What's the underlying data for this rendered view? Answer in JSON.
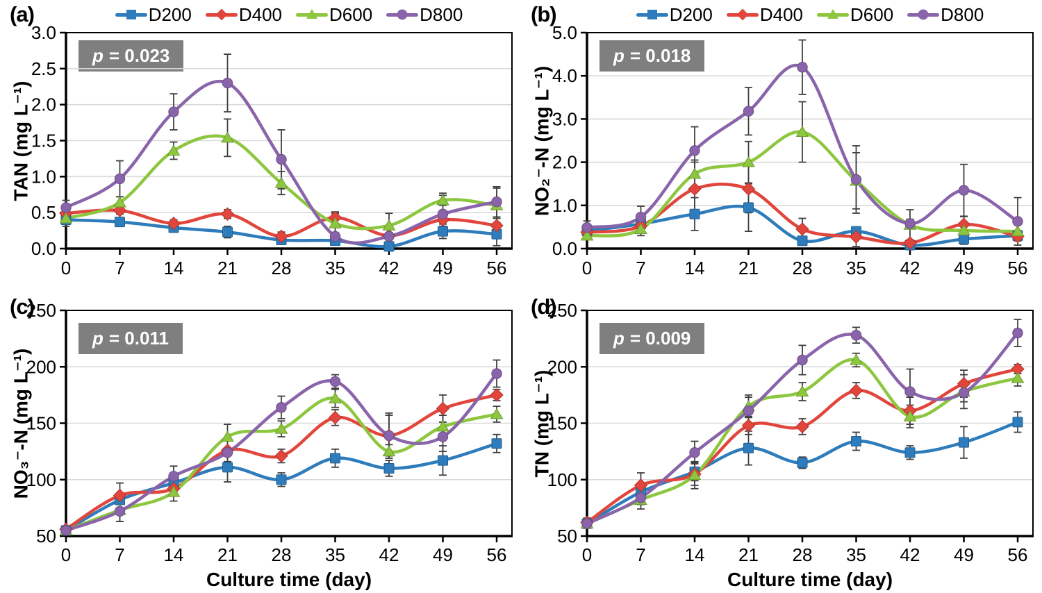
{
  "figure": {
    "background": "#ffffff",
    "grid_color": "#d9d9d9",
    "axis_color": "#000000",
    "error_bar_color": "#404040",
    "p_box_bg": "#7f7f7f",
    "p_box_text_color": "#ffffff"
  },
  "chart_data": [
    {
      "type": "line",
      "panel_label": "(a)",
      "p_symbol": "p",
      "p_rest": "= 0.023",
      "ylabel": "TAN (mg L⁻¹)",
      "xlabel": "",
      "legend_visible": true,
      "legend_position": "top",
      "grid": "horizontal",
      "x": [
        0,
        7,
        14,
        21,
        28,
        35,
        42,
        49,
        56
      ],
      "xtick_labels": [
        "0",
        "7",
        "14",
        "21",
        "28",
        "35",
        "42",
        "49",
        "56"
      ],
      "ylim": [
        0,
        3
      ],
      "ytick_values": [
        0,
        0.5,
        1.0,
        1.5,
        2.0,
        2.5,
        3.0
      ],
      "ytick_labels": [
        "0.0",
        "0.5",
        "1.0",
        "1.5",
        "2.0",
        "2.5",
        "3.0"
      ],
      "series": [
        {
          "name": "D200",
          "color": "#2e7cbb",
          "marker": "square",
          "values": [
            0.4,
            0.37,
            0.29,
            0.23,
            0.12,
            0.11,
            0.03,
            0.24,
            0.2
          ],
          "errors": [
            0.09,
            0.06,
            0.05,
            0.08,
            0.05,
            0.05,
            0.03,
            0.1,
            0.16
          ]
        },
        {
          "name": "D400",
          "color": "#e2453c",
          "marker": "diamond",
          "values": [
            0.49,
            0.53,
            0.35,
            0.48,
            0.17,
            0.43,
            0.18,
            0.4,
            0.32
          ],
          "errors": [
            0.08,
            0.05,
            0.05,
            0.06,
            0.06,
            0.08,
            0.04,
            0.09,
            0.1
          ]
        },
        {
          "name": "D600",
          "color": "#8dc63f",
          "marker": "triangle",
          "values": [
            0.42,
            0.64,
            1.36,
            1.54,
            0.91,
            0.35,
            0.32,
            0.67,
            0.6
          ],
          "errors": [
            0.05,
            0.08,
            0.12,
            0.26,
            0.16,
            0.14,
            0.17,
            0.07,
            0.24
          ]
        },
        {
          "name": "D800",
          "color": "#8a64aa",
          "marker": "circle",
          "values": [
            0.57,
            0.97,
            1.9,
            2.3,
            1.24,
            0.17,
            0.17,
            0.48,
            0.65
          ],
          "errors": [
            0.1,
            0.25,
            0.25,
            0.4,
            0.41,
            0.05,
            0.05,
            0.29,
            0.21
          ]
        }
      ]
    },
    {
      "type": "line",
      "panel_label": "(b)",
      "p_symbol": "p",
      "p_rest": "= 0.018",
      "ylabel": "NO₂⁻-N (mg L⁻¹)",
      "xlabel": "",
      "legend_visible": true,
      "legend_position": "top",
      "grid": "horizontal",
      "x": [
        0,
        7,
        14,
        21,
        28,
        35,
        42,
        49,
        56
      ],
      "xtick_labels": [
        "0",
        "7",
        "14",
        "21",
        "28",
        "35",
        "42",
        "49",
        "56"
      ],
      "ylim": [
        0,
        5
      ],
      "ytick_values": [
        0,
        1.0,
        2.0,
        3.0,
        4.0,
        5.0
      ],
      "ytick_labels": [
        "0.0",
        "1.0",
        "2.0",
        "3.0",
        "4.0",
        "5.0"
      ],
      "series": [
        {
          "name": "D200",
          "color": "#2e7cbb",
          "marker": "square",
          "values": [
            0.41,
            0.57,
            0.8,
            0.95,
            0.18,
            0.4,
            0.08,
            0.22,
            0.3
          ],
          "errors": [
            0.1,
            0.12,
            0.38,
            0.55,
            0.08,
            0.1,
            0.05,
            0.12,
            0.12
          ]
        },
        {
          "name": "D400",
          "color": "#e2453c",
          "marker": "diamond",
          "values": [
            0.38,
            0.52,
            1.38,
            1.38,
            0.45,
            0.27,
            0.13,
            0.56,
            0.28
          ],
          "errors": [
            0.12,
            0.1,
            0.62,
            0.55,
            0.25,
            0.22,
            0.06,
            0.18,
            0.1
          ]
        },
        {
          "name": "D600",
          "color": "#8dc63f",
          "marker": "triangle",
          "values": [
            0.3,
            0.45,
            1.73,
            2.0,
            2.7,
            1.57,
            0.55,
            0.42,
            0.4
          ],
          "errors": [
            0.08,
            0.15,
            0.32,
            0.48,
            0.7,
            0.65,
            0.35,
            0.12,
            0.15
          ]
        },
        {
          "name": "D800",
          "color": "#8a64aa",
          "marker": "circle",
          "values": [
            0.49,
            0.73,
            2.27,
            3.18,
            4.2,
            1.6,
            0.58,
            1.35,
            0.63
          ],
          "errors": [
            0.15,
            0.25,
            0.55,
            0.55,
            0.63,
            0.78,
            0.1,
            0.6,
            0.55
          ]
        }
      ]
    },
    {
      "type": "line",
      "panel_label": "(c)",
      "p_symbol": "p",
      "p_rest": "= 0.011",
      "ylabel": "NO₃⁻-N (mg L⁻¹)",
      "xlabel": "Culture time (day)",
      "legend_visible": false,
      "legend_position": "none",
      "grid": "horizontal",
      "x": [
        0,
        7,
        14,
        21,
        28,
        35,
        42,
        49,
        56
      ],
      "xtick_labels": [
        "0",
        "7",
        "14",
        "21",
        "28",
        "35",
        "42",
        "49",
        "56"
      ],
      "ylim": [
        50,
        250
      ],
      "ytick_values": [
        50,
        100,
        150,
        200,
        250
      ],
      "ytick_labels": [
        "50",
        "100",
        "150",
        "200",
        "250"
      ],
      "series": [
        {
          "name": "D200",
          "color": "#2e7cbb",
          "marker": "square",
          "values": [
            55,
            82,
            97,
            111,
            100,
            119,
            110,
            117,
            132
          ],
          "errors": [
            3,
            4,
            6,
            13,
            6,
            8,
            7,
            13,
            8
          ]
        },
        {
          "name": "D400",
          "color": "#e2453c",
          "marker": "diamond",
          "values": [
            56,
            86,
            92,
            126,
            121,
            155,
            139,
            163,
            175
          ],
          "errors": [
            3,
            11,
            6,
            10,
            6,
            7,
            18,
            12,
            5
          ]
        },
        {
          "name": "D600",
          "color": "#8dc63f",
          "marker": "triangle",
          "values": [
            55,
            73,
            89,
            138,
            145,
            172,
            125,
            147,
            158
          ],
          "errors": [
            3,
            10,
            8,
            11,
            7,
            8,
            6,
            10,
            7
          ]
        },
        {
          "name": "D800",
          "color": "#8a64aa",
          "marker": "circle",
          "values": [
            55,
            72,
            103,
            124,
            164,
            187,
            139,
            138,
            194
          ],
          "errors": [
            3,
            9,
            9,
            12,
            10,
            6,
            20,
            13,
            12
          ]
        }
      ]
    },
    {
      "type": "line",
      "panel_label": "(d)",
      "p_symbol": "p",
      "p_rest": "= 0.009",
      "ylabel": "TN (mg L⁻¹)",
      "xlabel": "Culture time (day)",
      "legend_visible": false,
      "legend_position": "none",
      "grid": "horizontal",
      "x": [
        0,
        7,
        14,
        21,
        28,
        35,
        42,
        49,
        56
      ],
      "xtick_labels": [
        "0",
        "7",
        "14",
        "21",
        "28",
        "35",
        "42",
        "49",
        "56"
      ],
      "ylim": [
        50,
        250
      ],
      "ytick_values": [
        50,
        100,
        150,
        200,
        250
      ],
      "ytick_labels": [
        "50",
        "100",
        "150",
        "200",
        "250"
      ],
      "series": [
        {
          "name": "D200",
          "color": "#2e7cbb",
          "marker": "square",
          "values": [
            61,
            89,
            107,
            128,
            115,
            134,
            124,
            133,
            151
          ],
          "errors": [
            4,
            6,
            8,
            15,
            5,
            8,
            6,
            14,
            9
          ]
        },
        {
          "name": "D400",
          "color": "#e2453c",
          "marker": "diamond",
          "values": [
            62,
            95,
            105,
            148,
            147,
            179,
            161,
            185,
            198
          ],
          "errors": [
            4,
            11,
            10,
            8,
            7,
            7,
            12,
            12,
            4
          ]
        },
        {
          "name": "D600",
          "color": "#8dc63f",
          "marker": "triangle",
          "values": [
            61,
            82,
            104,
            165,
            178,
            206,
            156,
            178,
            190
          ],
          "errors": [
            4,
            8,
            12,
            10,
            8,
            6,
            10,
            15,
            7
          ]
        },
        {
          "name": "D800",
          "color": "#8a64aa",
          "marker": "circle",
          "values": [
            61,
            84,
            124,
            161,
            206,
            228,
            178,
            177,
            230
          ],
          "errors": [
            4,
            6,
            10,
            12,
            13,
            7,
            20,
            8,
            12
          ]
        }
      ]
    }
  ]
}
